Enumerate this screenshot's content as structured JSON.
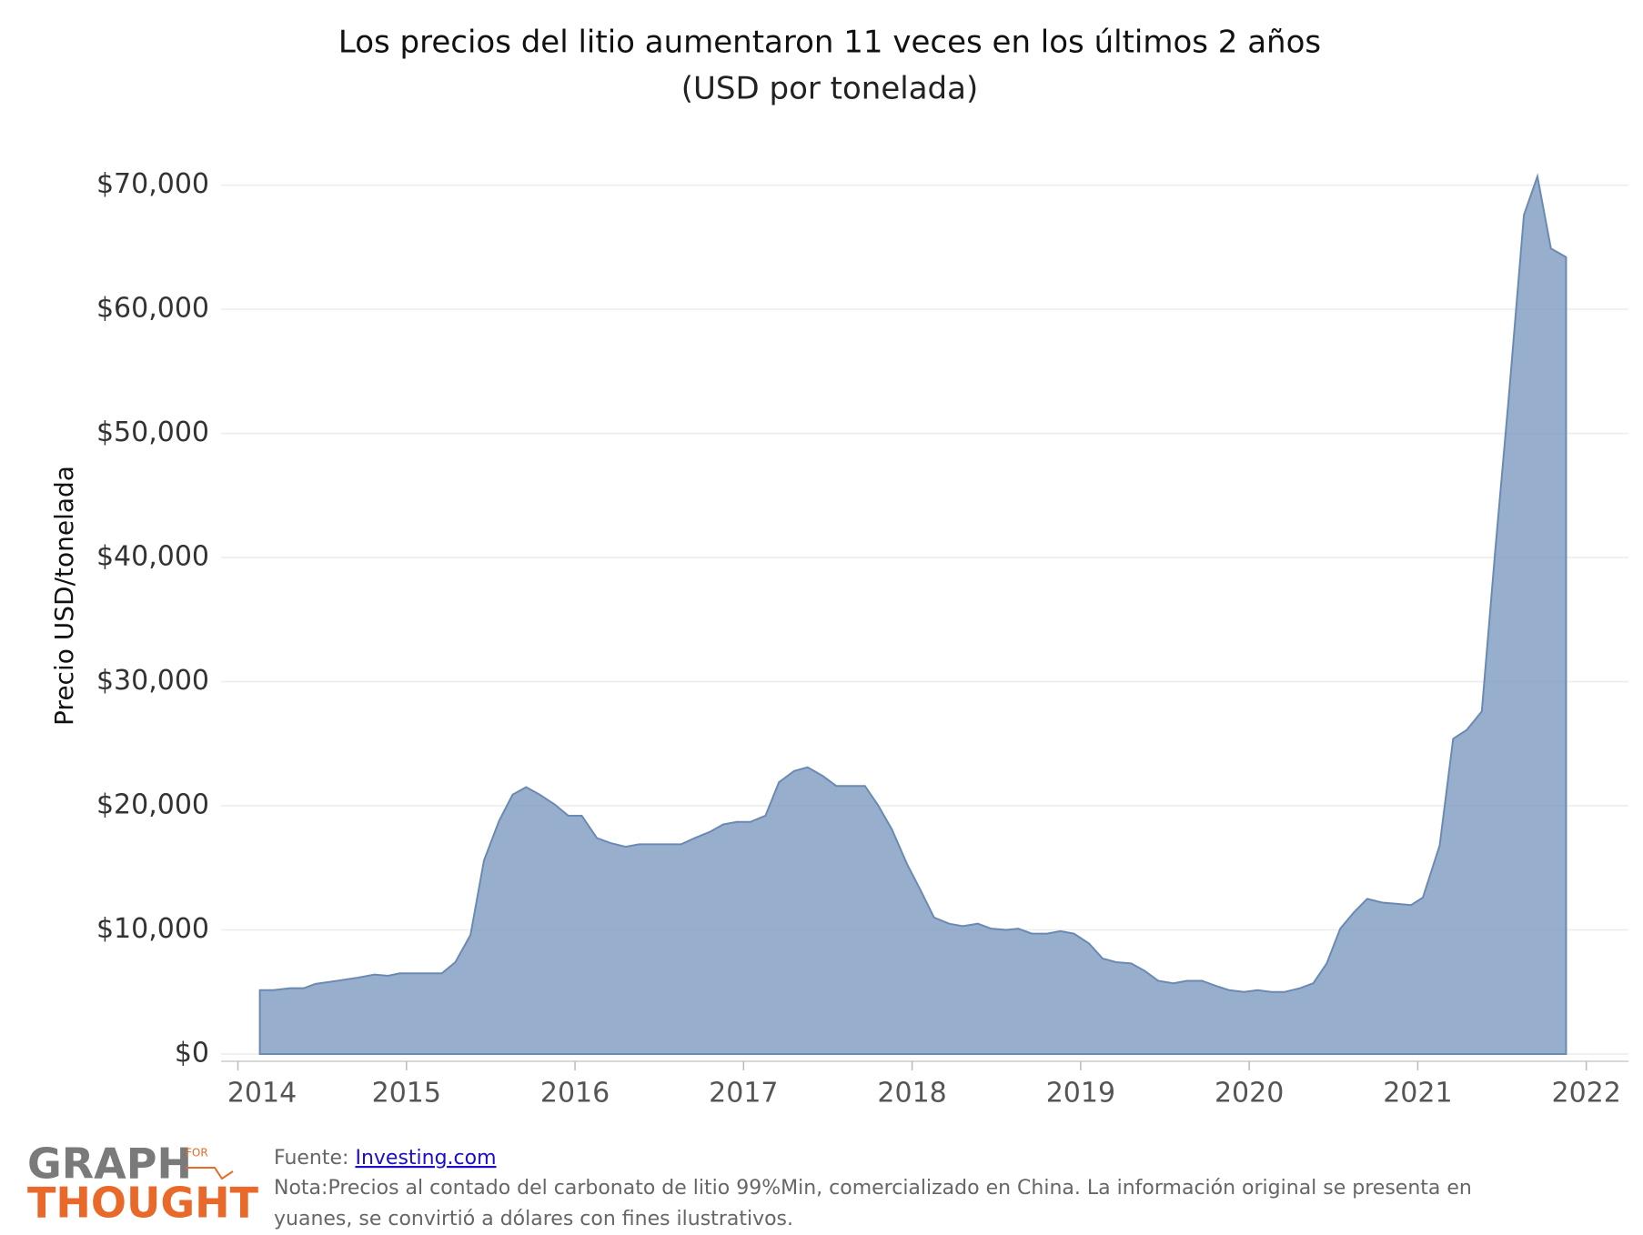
{
  "chart_data": {
    "type": "area",
    "title": "Los precios del litio aumentaron 11 veces en los últimos 2 años",
    "subtitle": "(USD por tonelada)",
    "y_label": "Precio USD/tonelada",
    "color": "#7d9bc1",
    "line_color": "#6a8ab3",
    "grid": true,
    "x": [
      2014.13,
      2014.21,
      2014.31,
      2014.39,
      2014.46,
      2014.59,
      2014.71,
      2014.81,
      2014.89,
      2014.96,
      2015.21,
      2015.29,
      2015.38,
      2015.46,
      2015.55,
      2015.63,
      2015.71,
      2015.79,
      2015.88,
      2015.96,
      2016.04,
      2016.13,
      2016.21,
      2016.3,
      2016.38,
      2016.63,
      2016.71,
      2016.8,
      2016.88,
      2016.96,
      2017.04,
      2017.13,
      2017.21,
      2017.3,
      2017.38,
      2017.47,
      2017.55,
      2017.72,
      2017.8,
      2017.88,
      2017.97,
      2018.05,
      2018.13,
      2018.22,
      2018.3,
      2018.39,
      2018.47,
      2018.56,
      2018.63,
      2018.71,
      2018.8,
      2018.88,
      2018.96,
      2019.05,
      2019.13,
      2019.21,
      2019.3,
      2019.38,
      2019.46,
      2019.55,
      2019.63,
      2019.72,
      2019.8,
      2019.88,
      2019.97,
      2020.05,
      2020.13,
      2020.21,
      2020.3,
      2020.38,
      2020.46,
      2020.54,
      2020.62,
      2020.7,
      2020.79,
      2020.88,
      2020.96,
      2021.03,
      2021.13,
      2021.21,
      2021.29,
      2021.38,
      2021.46,
      2021.54,
      2021.63,
      2021.71,
      2021.79,
      2021.88
    ],
    "values": [
      5150,
      5150,
      5300,
      5300,
      5650,
      5900,
      6150,
      6400,
      6300,
      6500,
      6500,
      7400,
      9600,
      15600,
      18800,
      20900,
      21500,
      20900,
      20100,
      19200,
      19200,
      17400,
      17000,
      16700,
      16900,
      16900,
      17400,
      17900,
      18500,
      18700,
      18700,
      19200,
      21900,
      22800,
      23100,
      22400,
      21600,
      21600,
      20000,
      18100,
      15300,
      13200,
      11000,
      10500,
      10300,
      10500,
      10100,
      10000,
      10100,
      9700,
      9700,
      9900,
      9700,
      8900,
      7700,
      7400,
      7300,
      6700,
      5900,
      5700,
      5900,
      5900,
      5500,
      5150,
      5000,
      5150,
      5000,
      5000,
      5300,
      5700,
      7300,
      10100,
      11400,
      12500,
      12200,
      12100,
      12000,
      12600,
      16800,
      25400,
      26100,
      27600,
      40600,
      52900,
      67600,
      70700,
      64900,
      64200
    ],
    "xlim": [
      2013.9,
      2022.25
    ],
    "xticks": [
      2014,
      2015,
      2016,
      2017,
      2018,
      2019,
      2020,
      2021,
      2022
    ],
    "ylim": [
      0,
      74000
    ],
    "yticks": [
      {
        "value": 0,
        "label": "$0"
      },
      {
        "value": 10000,
        "label": "$10,000"
      },
      {
        "value": 20000,
        "label": "$20,000"
      },
      {
        "value": 30000,
        "label": "$30,000"
      },
      {
        "value": 40000,
        "label": "$40,000"
      },
      {
        "value": 50000,
        "label": "$50,000"
      },
      {
        "value": 60000,
        "label": "$60,000"
      },
      {
        "value": 70000,
        "label": "$70,000"
      }
    ]
  },
  "footer": {
    "source_label": "Fuente",
    "source_sep": ": ",
    "source_link": "Investing.com",
    "note_label": "Nota",
    "note_text_1": ":Precios al contado del carbonato de litio 99%Min, comercializado en China. La información original se presenta en",
    "note_text_2": "yuanes, se convirtió a dólares con fines ilustrativos."
  },
  "logo": {
    "line1": "GRAPH",
    "small": "FOR",
    "line2": "THOUGHT"
  }
}
